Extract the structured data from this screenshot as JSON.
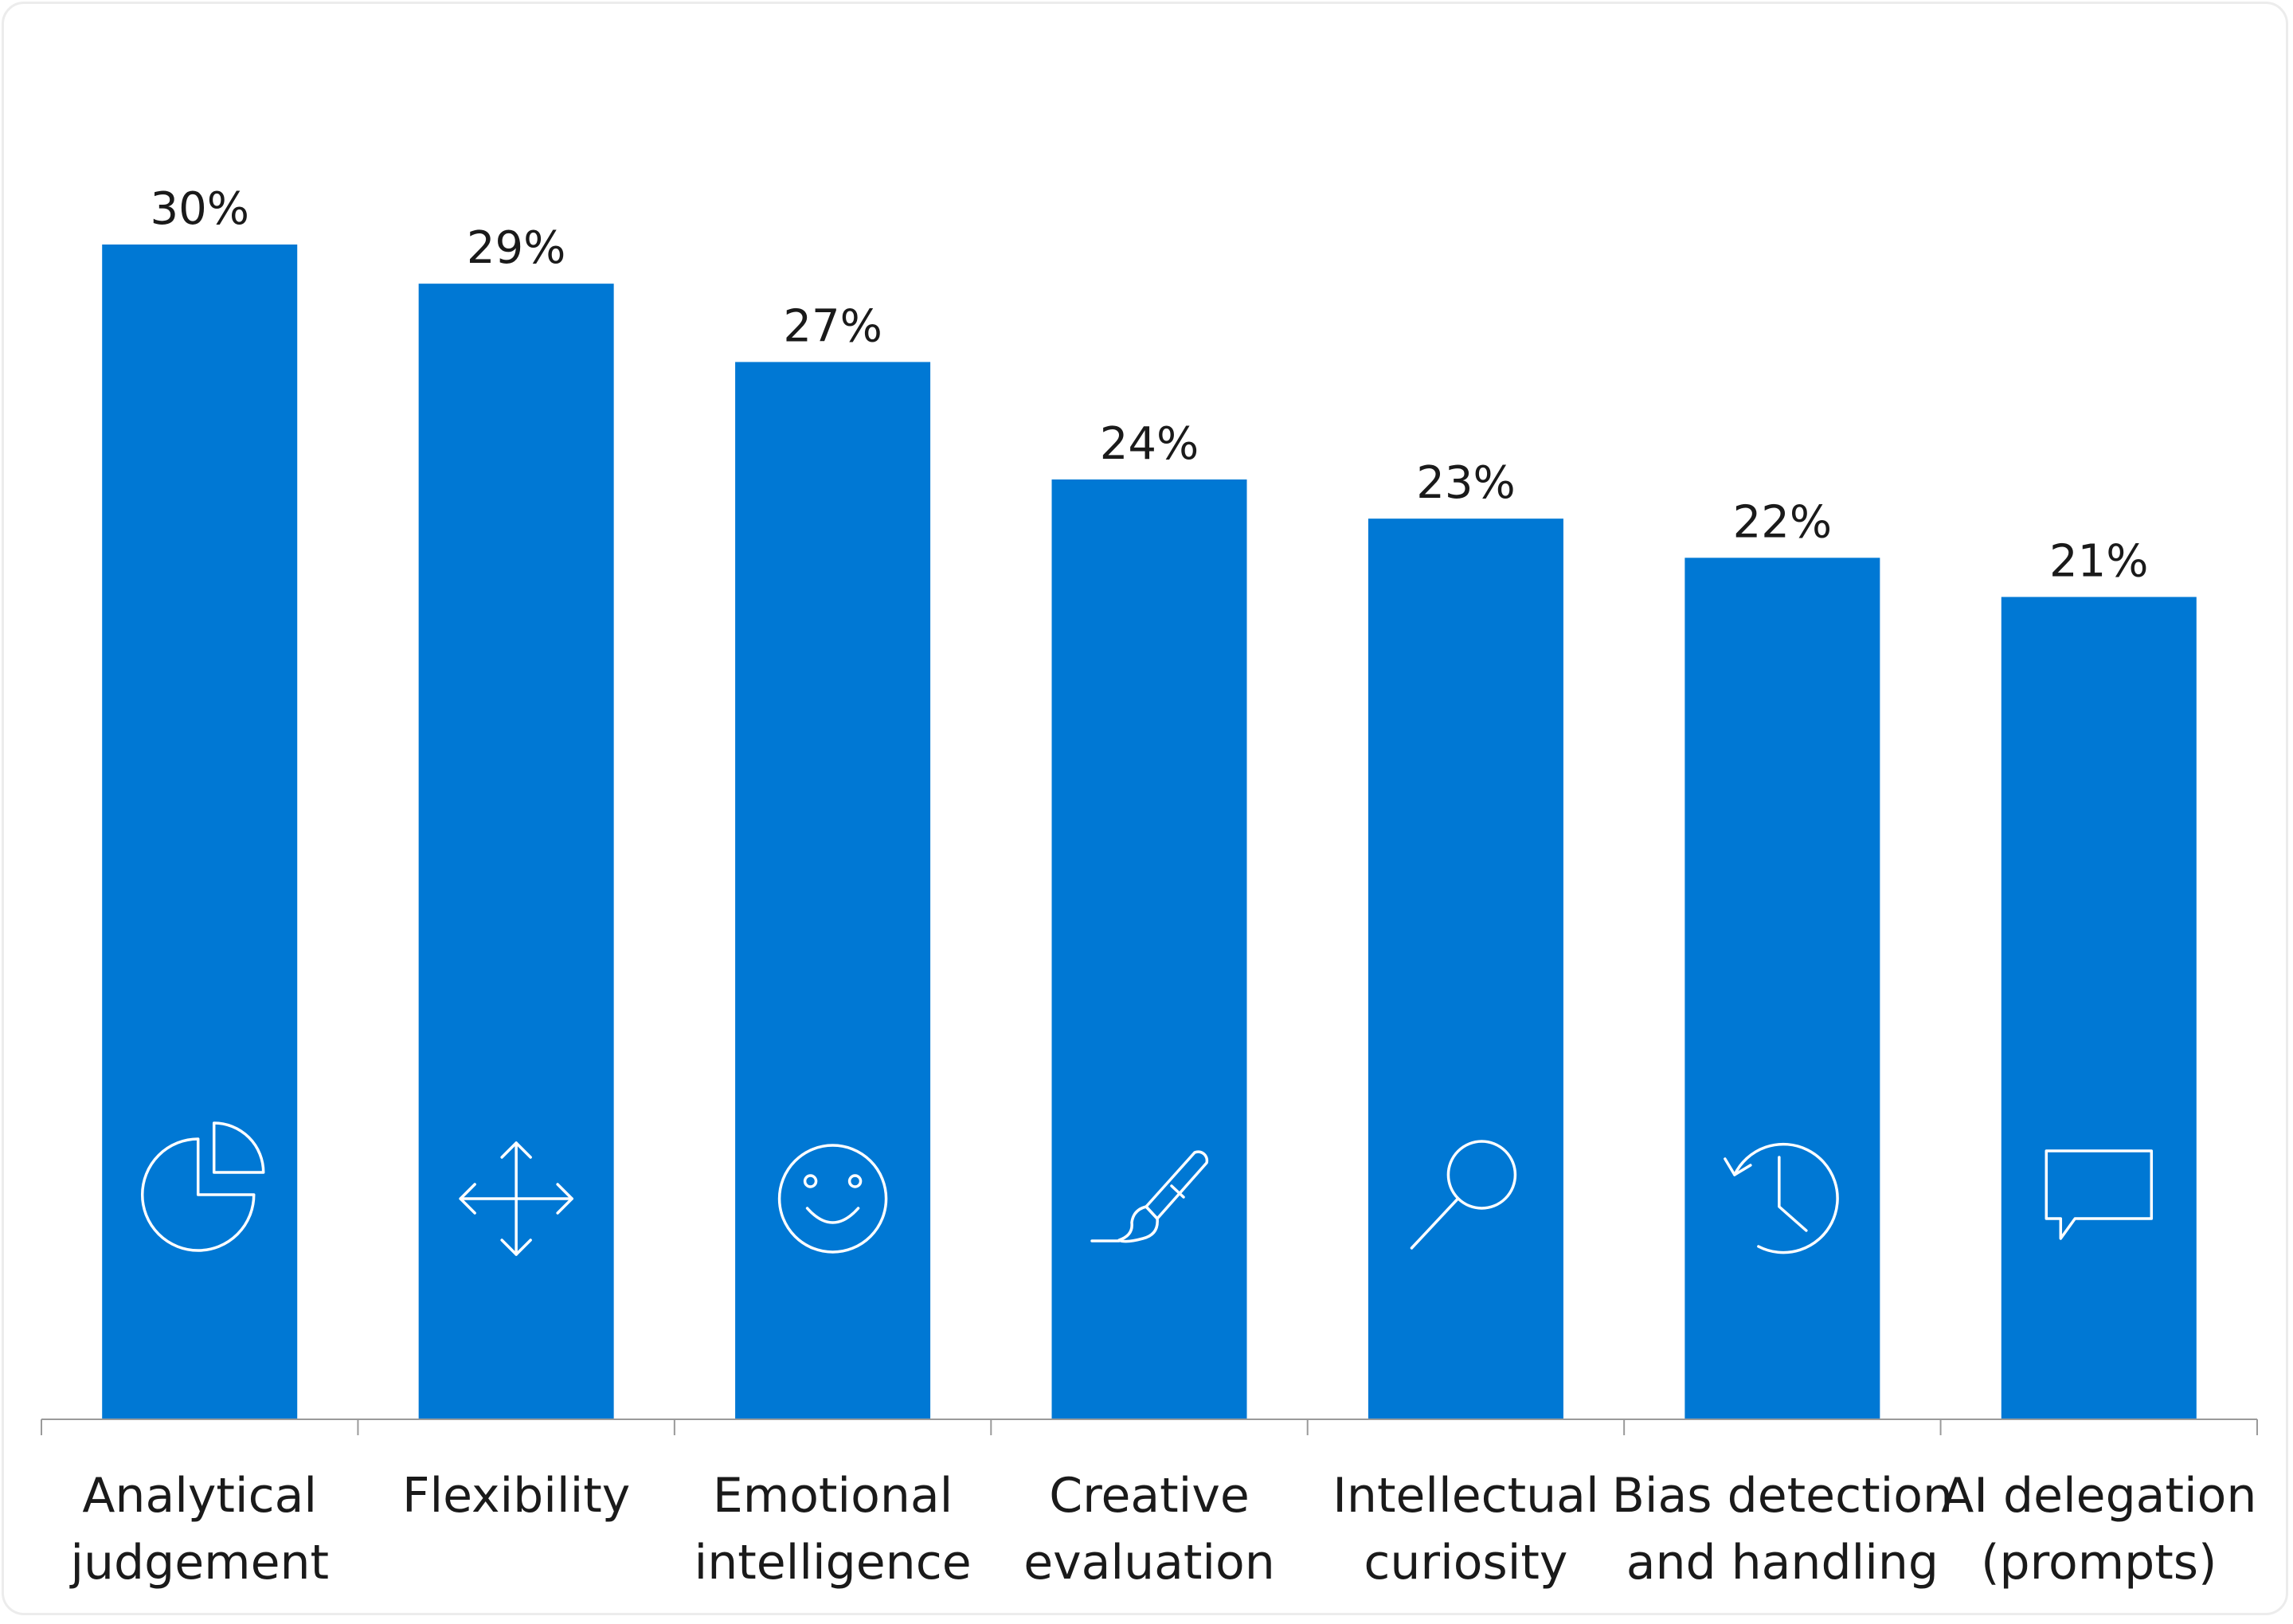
{
  "chart_data": {
    "type": "bar",
    "categories": [
      [
        "Analytical",
        "judgement"
      ],
      [
        "Flexibility"
      ],
      [
        "Emotional",
        "intelligence"
      ],
      [
        "Creative",
        "evaluation"
      ],
      [
        "Intellectual",
        "curiosity"
      ],
      [
        "Bias detection",
        "and handling"
      ],
      [
        "AI delegation",
        "(prompts)"
      ]
    ],
    "values": [
      30,
      29,
      27,
      24,
      23,
      22,
      21
    ],
    "value_labels": [
      "30%",
      "29%",
      "27%",
      "24%",
      "23%",
      "22%",
      "21%"
    ],
    "icons": [
      "pie-chart-icon",
      "move-arrows-icon",
      "smiley-face-icon",
      "paintbrush-icon",
      "magnifier-icon",
      "history-clock-icon",
      "speech-bubble-icon"
    ],
    "ylim": [
      0,
      33
    ],
    "bar_color": "#0078d4",
    "icon_color": "#ffffff",
    "grid": false,
    "title": "",
    "xlabel": "",
    "ylabel": ""
  }
}
